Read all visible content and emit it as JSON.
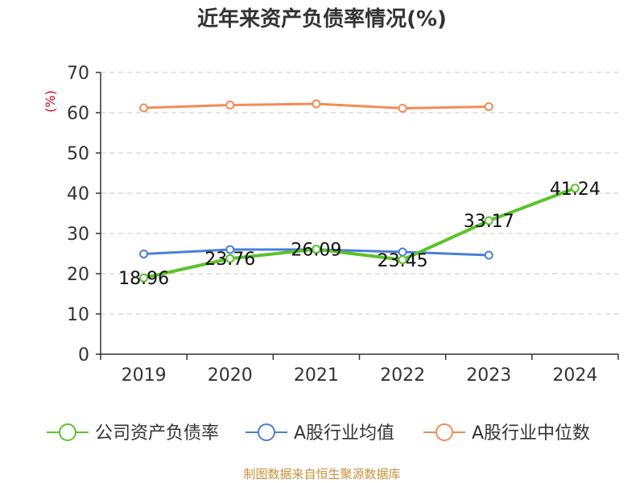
{
  "chart_data": {
    "type": "line",
    "title": "近年来资产负债率情况(%)",
    "xlabel": "",
    "ylabel": "(%)",
    "categories": [
      "2019",
      "2020",
      "2021",
      "2022",
      "2023",
      "2024"
    ],
    "ylim": [
      0,
      70
    ],
    "yticks": [
      0,
      10,
      20,
      30,
      40,
      50,
      60,
      70
    ],
    "grid": true,
    "legend_position": "bottom",
    "series": [
      {
        "name": "公司资产负债率",
        "color": "#5cc22b",
        "values": [
          18.96,
          23.76,
          26.09,
          23.45,
          33.17,
          41.24
        ],
        "labels": [
          "18.96",
          "23.76",
          "26.09",
          "23.45",
          "33.17",
          "41.24"
        ]
      },
      {
        "name": "A股行业均值",
        "color": "#4a7ed8",
        "values": [
          24.9,
          26.0,
          26.0,
          25.4,
          24.6,
          null
        ]
      },
      {
        "name": "A股行业中位数",
        "color": "#f28c55",
        "values": [
          61.2,
          61.9,
          62.2,
          61.1,
          61.5,
          null
        ]
      }
    ]
  },
  "source": {
    "text": "制图数据来自恒生聚源数据库",
    "color": "#c8913a"
  }
}
